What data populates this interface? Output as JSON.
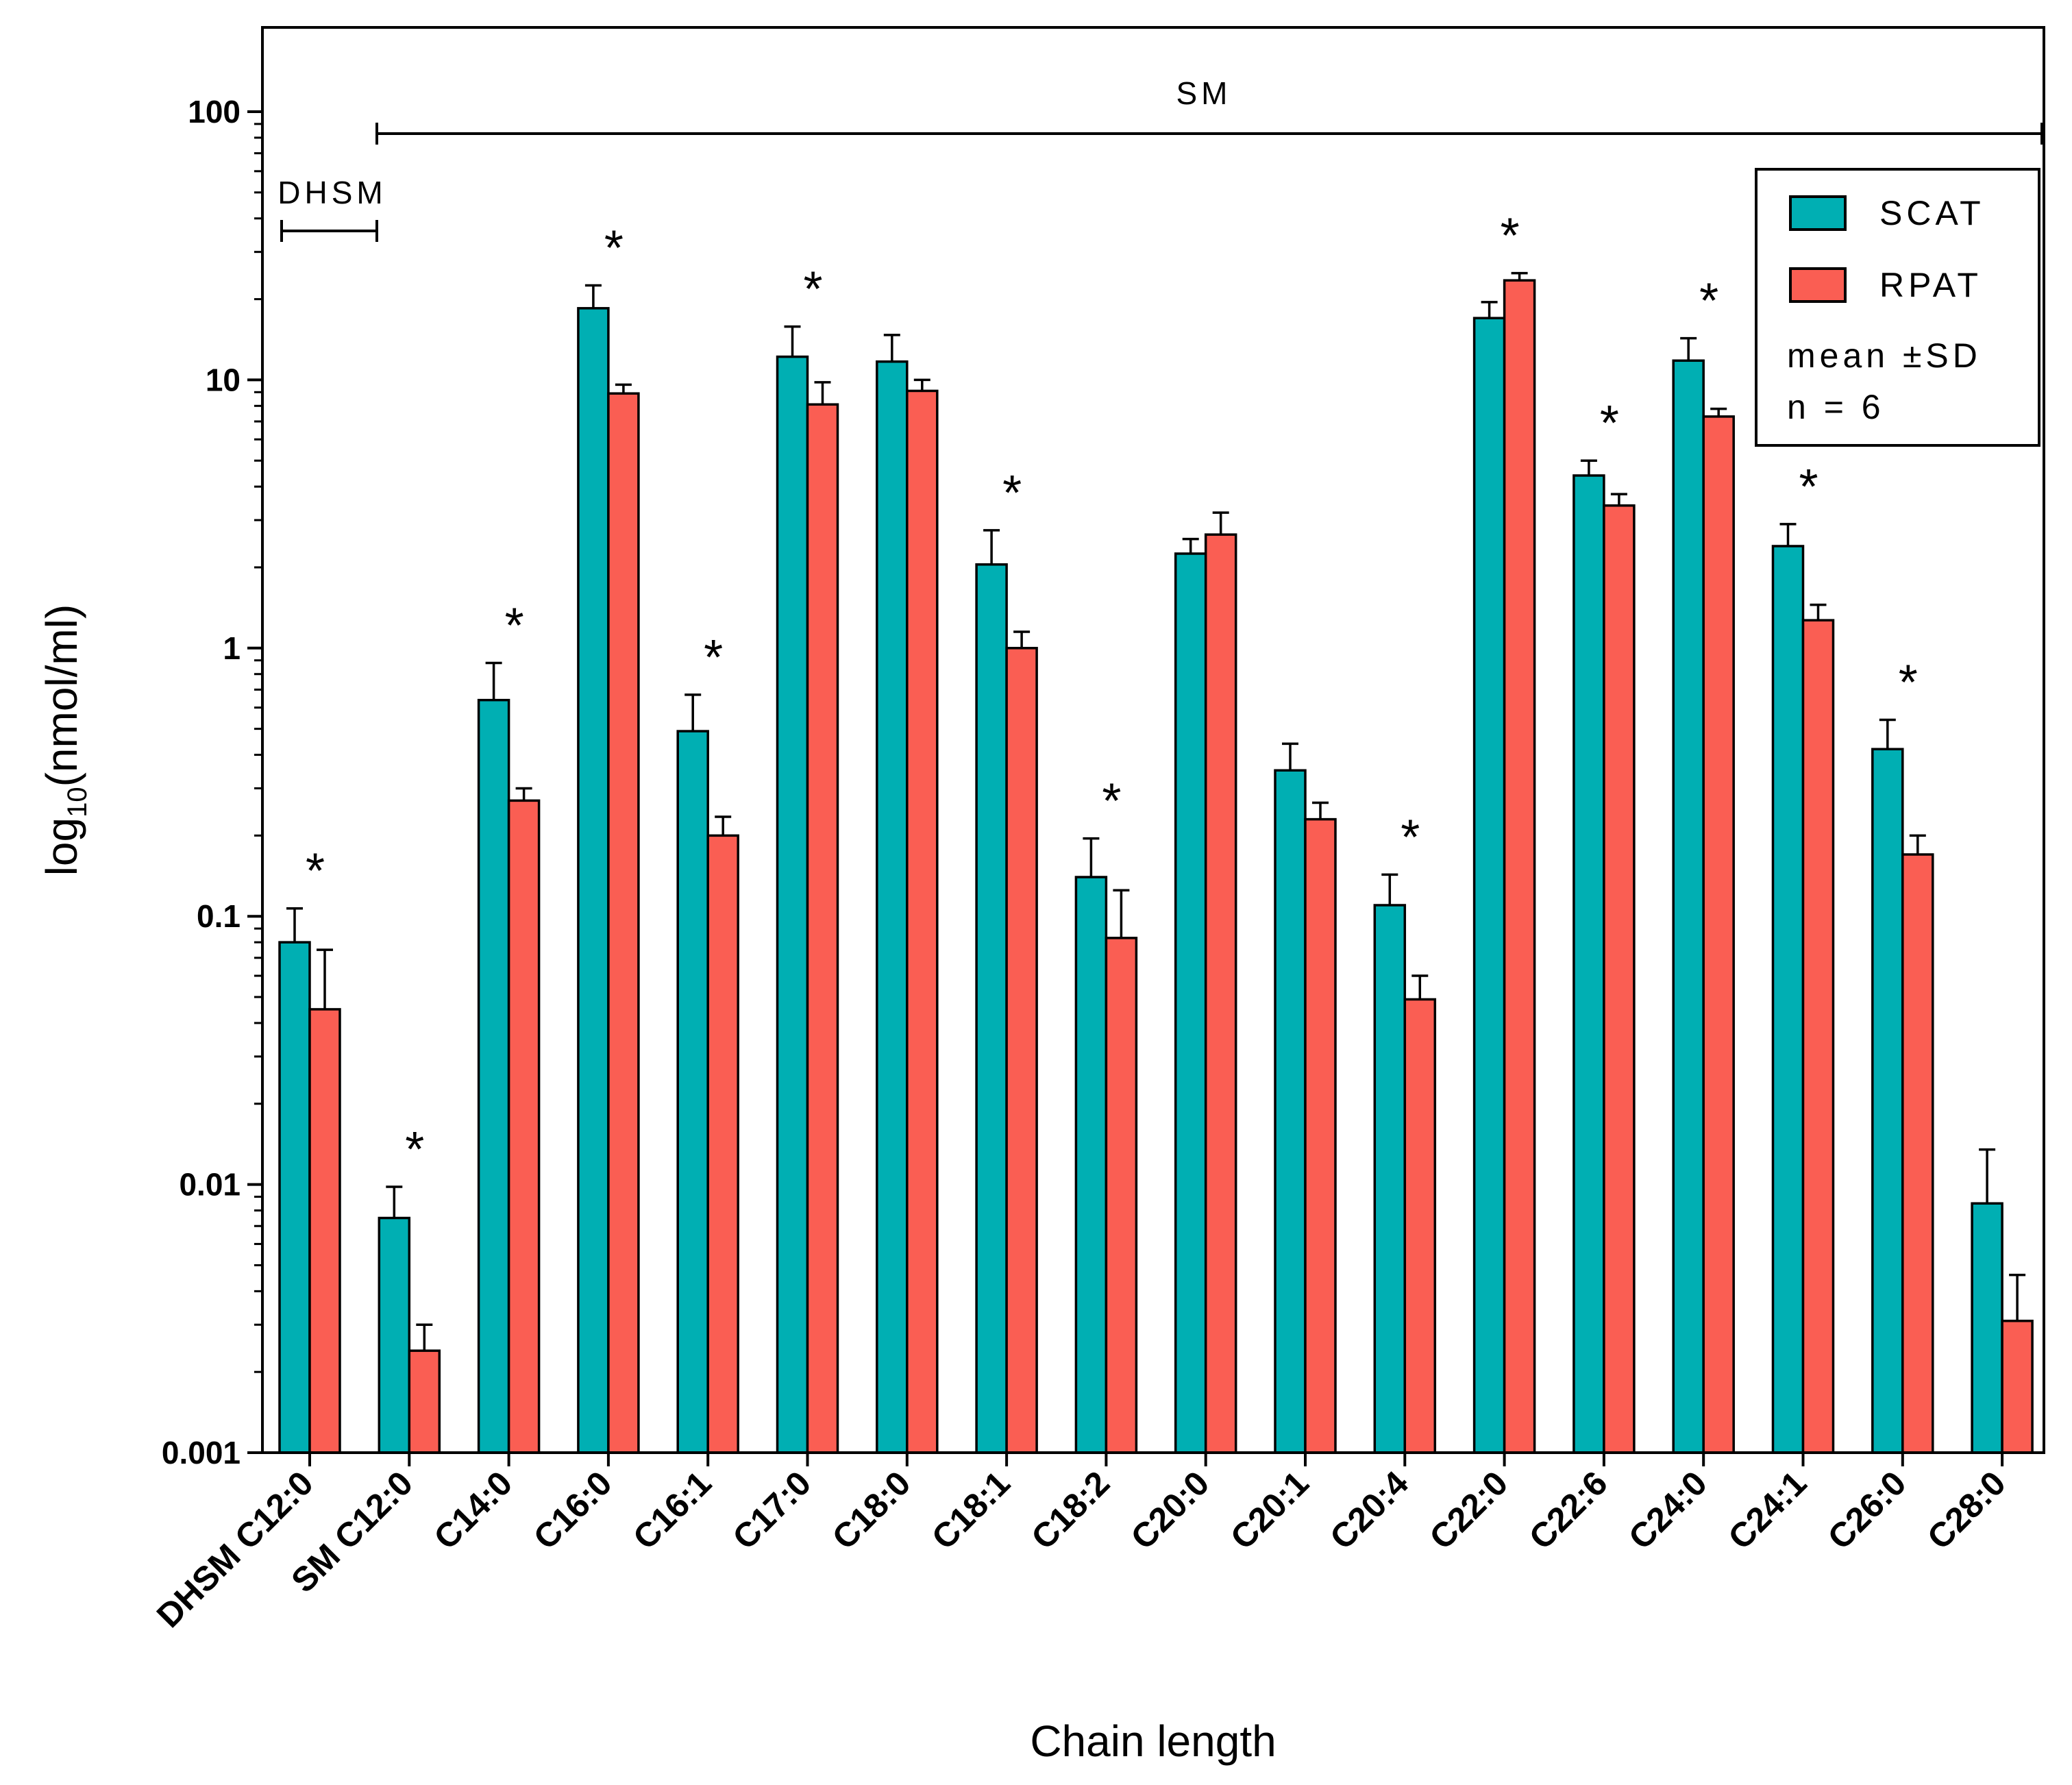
{
  "chart_data": {
    "type": "bar",
    "scale": "log10",
    "ylabel_main": "log",
    "ylabel_sub": "10",
    "ylabel_rest": "(nmol/ml)",
    "xlabel": "Chain length",
    "ylim": [
      0.001,
      200
    ],
    "y_ticks": [
      0.001,
      0.01,
      0.1,
      1,
      10,
      100
    ],
    "y_tick_labels": [
      "0.001",
      "0.01",
      "0.1",
      "1",
      "10",
      "100"
    ],
    "categories": [
      "DHSM C12:0",
      "SM C12:0",
      "C14:0",
      "C16:0",
      "C16:1",
      "C17:0",
      "C18:0",
      "C18:1",
      "C18:2",
      "C20:0",
      "C20:1",
      "C20:4",
      "C22:0",
      "C22:6",
      "C24:0",
      "C24:1",
      "C26:0",
      "C28:0"
    ],
    "series": [
      {
        "name": "SCAT",
        "color": "#00AFB3",
        "values": [
          0.08,
          0.0075,
          0.64,
          18.5,
          0.49,
          12.2,
          11.7,
          2.05,
          0.14,
          2.25,
          0.35,
          0.11,
          17,
          4.4,
          11.8,
          2.4,
          0.42,
          0.0085
        ],
        "errors": [
          0.107,
          0.0098,
          0.88,
          22.5,
          0.67,
          15.8,
          14.7,
          2.75,
          0.195,
          2.55,
          0.44,
          0.143,
          19.5,
          5.0,
          14.3,
          2.9,
          0.54,
          0.0135
        ]
      },
      {
        "name": "RPAT",
        "color": "#FA5E53",
        "values": [
          0.045,
          0.0024,
          0.27,
          8.9,
          0.2,
          8.1,
          9.1,
          1.0,
          0.083,
          2.65,
          0.23,
          0.049,
          23.5,
          3.4,
          7.3,
          1.27,
          0.17,
          0.0031
        ],
        "errors": [
          0.075,
          0.003,
          0.3,
          9.6,
          0.235,
          9.8,
          10.0,
          1.15,
          0.125,
          3.2,
          0.265,
          0.06,
          25,
          3.75,
          7.8,
          1.45,
          0.2,
          0.0046
        ]
      }
    ],
    "significant": [
      true,
      true,
      true,
      true,
      true,
      true,
      false,
      true,
      true,
      false,
      false,
      true,
      true,
      true,
      true,
      true,
      true,
      false
    ],
    "significance_marker": "*",
    "brackets": [
      {
        "label": "DHSM",
        "from_category": 0,
        "to_category": 0
      },
      {
        "label": "SM",
        "from_category": 1,
        "to_category": 17
      }
    ],
    "legend": {
      "position": "top-right",
      "entries": [
        "SCAT",
        "RPAT"
      ],
      "note_line1": "mean ±SD",
      "note_line2": "n = 6"
    },
    "grid": false
  }
}
